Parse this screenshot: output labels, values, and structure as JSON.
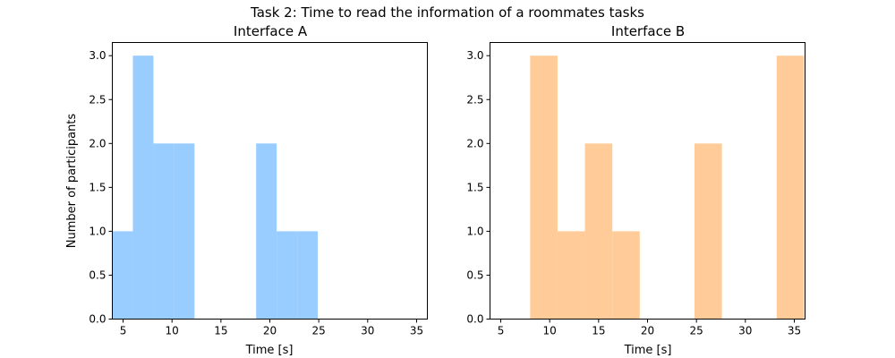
{
  "figure_title": "Task 2: Time to read the information of a roommates tasks",
  "chart_data": [
    {
      "type": "bar",
      "title": "Interface A",
      "xlabel": "Time [s]",
      "ylabel": "Number of participants",
      "xlim": [
        3.9,
        36.1
      ],
      "ylim": [
        0,
        3.15
      ],
      "xticks": [
        5,
        10,
        15,
        20,
        25,
        30,
        35
      ],
      "yticks": [
        0.0,
        0.5,
        1.0,
        1.5,
        2.0,
        2.5,
        3.0
      ],
      "color": "#99ccff",
      "bins": [
        {
          "x0": 3.9,
          "x1": 6.0,
          "value": 1
        },
        {
          "x0": 6.0,
          "x1": 8.1,
          "value": 3
        },
        {
          "x0": 8.1,
          "x1": 10.2,
          "value": 2
        },
        {
          "x0": 10.2,
          "x1": 12.3,
          "value": 2
        },
        {
          "x0": 12.3,
          "x1": 14.4,
          "value": 0
        },
        {
          "x0": 14.4,
          "x1": 16.5,
          "value": 0
        },
        {
          "x0": 16.5,
          "x1": 18.6,
          "value": 0
        },
        {
          "x0": 18.6,
          "x1": 20.7,
          "value": 2
        },
        {
          "x0": 20.7,
          "x1": 22.8,
          "value": 1
        },
        {
          "x0": 22.8,
          "x1": 24.9,
          "value": 1
        }
      ]
    },
    {
      "type": "bar",
      "title": "Interface B",
      "xlabel": "Time [s]",
      "ylabel": "",
      "xlim": [
        3.9,
        36.1
      ],
      "ylim": [
        0,
        3.15
      ],
      "xticks": [
        5,
        10,
        15,
        20,
        25,
        30,
        35
      ],
      "yticks": [
        0.0,
        0.5,
        1.0,
        1.5,
        2.0,
        2.5,
        3.0
      ],
      "color": "#ffcc99",
      "bins": [
        {
          "x0": 8.0,
          "x1": 10.8,
          "value": 3
        },
        {
          "x0": 10.8,
          "x1": 13.6,
          "value": 1
        },
        {
          "x0": 13.6,
          "x1": 16.4,
          "value": 2
        },
        {
          "x0": 16.4,
          "x1": 19.2,
          "value": 1
        },
        {
          "x0": 19.2,
          "x1": 22.0,
          "value": 0
        },
        {
          "x0": 22.0,
          "x1": 24.8,
          "value": 0
        },
        {
          "x0": 24.8,
          "x1": 27.6,
          "value": 2
        },
        {
          "x0": 27.6,
          "x1": 30.4,
          "value": 0
        },
        {
          "x0": 30.4,
          "x1": 33.2,
          "value": 0
        },
        {
          "x0": 33.2,
          "x1": 36.0,
          "value": 3
        }
      ]
    }
  ]
}
